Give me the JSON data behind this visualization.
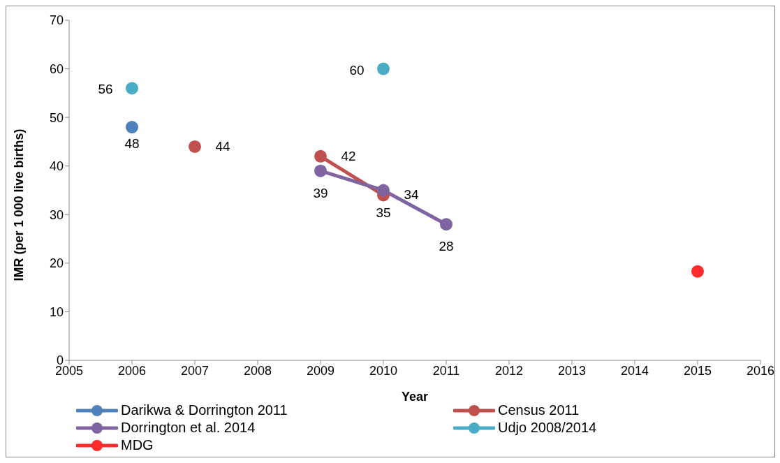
{
  "chart_data": {
    "type": "line",
    "xlabel": "Year",
    "ylabel": "IMR (per 1 000 live births)",
    "xlim": [
      2005,
      2016
    ],
    "xticks": [
      2005,
      2006,
      2007,
      2008,
      2009,
      2010,
      2011,
      2012,
      2013,
      2014,
      2015,
      2016
    ],
    "ylim": [
      0,
      70
    ],
    "yticks": [
      0,
      10,
      20,
      30,
      40,
      50,
      60,
      70
    ],
    "grid": false,
    "legend": "bottom",
    "marker": "circle",
    "line_style": "solid",
    "series": [
      {
        "name": "Darikwa & Dorrington 2011",
        "color": "#4f81bd",
        "x": [
          2006
        ],
        "values": [
          48
        ],
        "value_labels": [
          "48"
        ]
      },
      {
        "name": "Census 2011",
        "color": "#c0504d",
        "x": [
          2007,
          2008,
          2009,
          2010
        ],
        "values": [
          44,
          null,
          42,
          34
        ],
        "value_labels": [
          "44",
          null,
          "42",
          "34"
        ]
      },
      {
        "name": "Dorrington et al. 2014",
        "color": "#8064a2",
        "x": [
          2009,
          2010,
          2011
        ],
        "values": [
          39,
          35,
          28
        ],
        "value_labels": [
          "39",
          "35",
          "28"
        ]
      },
      {
        "name": "Udjo 2008/2014",
        "type": "scatter",
        "color": "#4bacc6",
        "x": [
          2006,
          2010
        ],
        "values": [
          56,
          60
        ],
        "value_labels": [
          "56",
          "60"
        ]
      },
      {
        "name": "MDG",
        "color": "#ff2a2a",
        "x": [
          2015
        ],
        "values": [
          18.3
        ],
        "value_labels": [
          null
        ]
      }
    ]
  }
}
